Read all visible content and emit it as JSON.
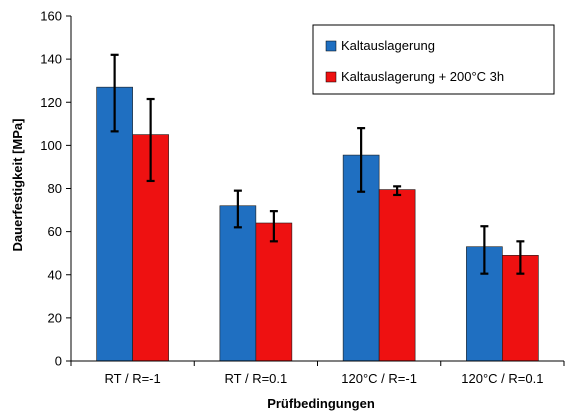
{
  "chart_data": {
    "type": "bar",
    "title": "",
    "xlabel": "Prüfbedingungen",
    "ylabel": "Dauerfestigkeit [MPa]",
    "ylim": [
      0,
      160
    ],
    "yticks": [
      0,
      20,
      40,
      60,
      80,
      100,
      120,
      140,
      160
    ],
    "grid": false,
    "legend_position": "top-right",
    "categories": [
      "RT / R=-1",
      "RT / R=0.1",
      "120°C / R=-1",
      "120°C / R=0.1"
    ],
    "series": [
      {
        "name": "Kaltauslagerung",
        "color": "#1f6fc1",
        "values": [
          127,
          72,
          95.5,
          53
        ],
        "error": [
          [
            106.5,
            142
          ],
          [
            62,
            79
          ],
          [
            78.5,
            108
          ],
          [
            40.5,
            62.5
          ]
        ]
      },
      {
        "name": "Kaltauslagerung + 200°C 3h",
        "color": "#ee1111",
        "values": [
          105,
          64,
          79.5,
          49
        ],
        "error": [
          [
            83.5,
            121.5
          ],
          [
            55.5,
            69.5
          ],
          [
            77,
            81
          ],
          [
            40.5,
            55.5
          ]
        ]
      }
    ]
  }
}
